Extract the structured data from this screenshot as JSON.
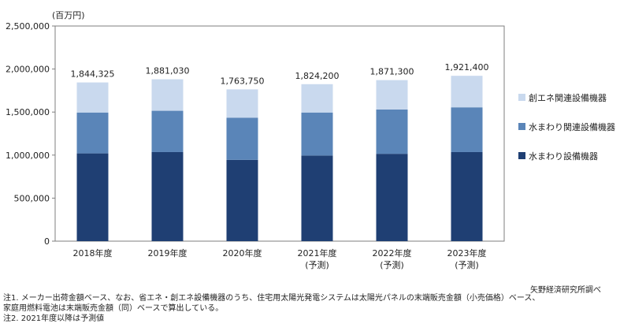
{
  "chart_data": {
    "type": "bar",
    "stacked": true,
    "unit_label": "(百万円)",
    "categories": [
      [
        "2018年度"
      ],
      [
        "2019年度"
      ],
      [
        "2020年度"
      ],
      [
        "2021年度",
        "(予測)"
      ],
      [
        "2022年度",
        "(予測)"
      ],
      [
        "2023年度",
        "(予測)"
      ]
    ],
    "series": [
      {
        "name": "水まわり設備機器",
        "color": "#1f3f73",
        "values": [
          1020000,
          1035000,
          945000,
          995000,
          1015000,
          1035000
        ]
      },
      {
        "name": "水まわり関連設備機器",
        "color": "#5a85b8",
        "values": [
          475000,
          480000,
          490000,
          500000,
          515000,
          520000
        ]
      },
      {
        "name": "創エネ関連設備機器",
        "color": "#c9d9ee",
        "values": [
          349325,
          366030,
          328750,
          329200,
          341300,
          366400
        ]
      }
    ],
    "totals": [
      "1,844,325",
      "1,881,030",
      "1,763,750",
      "1,824,200",
      "1,871,300",
      "1,921,400"
    ],
    "ylim": [
      0,
      2500000
    ],
    "yticks": [
      0,
      500000,
      1000000,
      1500000,
      2000000,
      2500000
    ],
    "ytick_labels": [
      "0",
      "500,000",
      "1,000,000",
      "1,500,000",
      "2,000,000",
      "2,500,000"
    ],
    "grid": false,
    "legend_placement": "right"
  },
  "source": "矢野経済研究所調べ",
  "notes": [
    "注1. メーカー出荷金額ベース、なお、省エネ・創エネ設備機器のうち、住宅用太陽光発電システムは太陽光パネルの末端販売金額（小売価格）ベース、",
    "家庭用燃料電池は末端販売金額（同）ベースで算出している。",
    "注2. 2021年度以降は予測値"
  ]
}
